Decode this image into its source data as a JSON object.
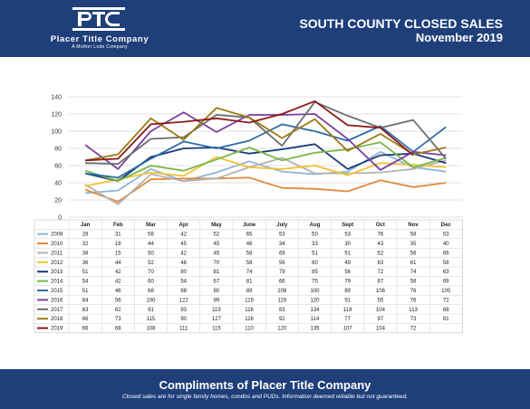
{
  "header": {
    "logo_company": "Placer Title Company",
    "logo_sub": "A Mother Lode Company",
    "title": "SOUTH COUNTY CLOSED SALES",
    "subtitle": "November 2019"
  },
  "footer": {
    "title": "Compliments of Placer Title Company",
    "note": "Closed sales are for single family homes, condos and PUDs. Information deemed reliable but not guaranteed."
  },
  "chart_data": {
    "type": "line",
    "title": "",
    "xlabel": "",
    "ylabel": "",
    "ylim": [
      0,
      140
    ],
    "yticks": [
      0,
      20,
      40,
      60,
      80,
      100,
      120,
      140
    ],
    "grid": true,
    "legend": "table-below",
    "categories": [
      "Jan",
      "Feb",
      "Mar",
      "Apr",
      "May",
      "June",
      "July",
      "Aug",
      "Sept",
      "Oct",
      "Nov",
      "Dec"
    ],
    "series": [
      {
        "name": "2009",
        "color": "#8fb4d9",
        "values": [
          28,
          31,
          56,
          42,
          52,
          65,
          53,
          50,
          53,
          76,
          58,
          53
        ]
      },
      {
        "name": "2010",
        "color": "#e08a3c",
        "values": [
          32,
          18,
          44,
          45,
          45,
          46,
          34,
          33,
          30,
          43,
          35,
          40
        ]
      },
      {
        "name": "2011",
        "color": "#b3b3b3",
        "values": [
          38,
          15,
          50,
          42,
          45,
          58,
          69,
          51,
          51,
          52,
          56,
          66
        ]
      },
      {
        "name": "2012",
        "color": "#f2c230",
        "values": [
          36,
          44,
          52,
          48,
          70,
          58,
          56,
          60,
          49,
          63,
          61,
          58
        ]
      },
      {
        "name": "2013",
        "color": "#1a3a78",
        "values": [
          51,
          42,
          70,
          80,
          81,
          74,
          79,
          85,
          56,
          72,
          74,
          63
        ]
      },
      {
        "name": "2014",
        "color": "#7ab648",
        "values": [
          54,
          42,
          60,
          54,
          67,
          81,
          66,
          75,
          79,
          87,
          58,
          69
        ]
      },
      {
        "name": "2015",
        "color": "#2e6ca8",
        "values": [
          51,
          46,
          68,
          88,
          80,
          89,
          108,
          100,
          89,
          106,
          76,
          105
        ]
      },
      {
        "name": "2016",
        "color": "#7b3fa0",
        "values": [
          84,
          56,
          100,
          122,
          99,
          119,
          119,
          120,
          91,
          55,
          76,
          72
        ]
      },
      {
        "name": "2017",
        "color": "#6e6e6e",
        "values": [
          63,
          62,
          91,
          93,
          119,
          116,
          83,
          134,
          118,
          104,
          113,
          68
        ]
      },
      {
        "name": "2018",
        "color": "#9c7a14",
        "values": [
          66,
          73,
          115,
          90,
          127,
          116,
          92,
          114,
          77,
          97,
          73,
          81
        ]
      },
      {
        "name": "2019",
        "color": "#8b1a1a",
        "values": [
          66,
          68,
          108,
          111,
          115,
          110,
          120,
          135,
          107,
          104,
          72,
          null
        ]
      }
    ]
  }
}
